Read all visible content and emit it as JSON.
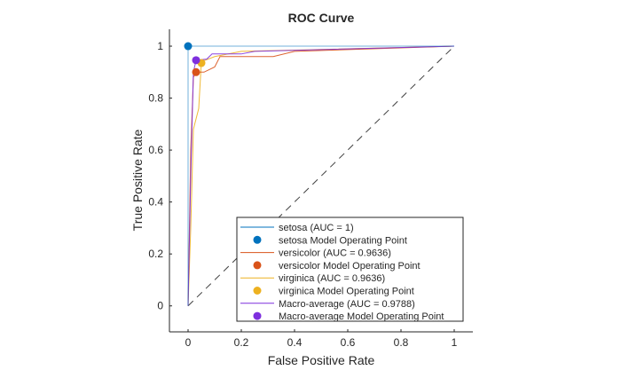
{
  "chart_data": {
    "type": "line",
    "title": "ROC Curve",
    "xlabel": "False Positive Rate",
    "ylabel": "True Positive Rate",
    "xlim": [
      -0.07,
      1.07
    ],
    "ylim": [
      -0.1,
      1.065
    ],
    "xticks": [
      "0",
      "0.2",
      "0.4",
      "0.6",
      "0.8",
      "1"
    ],
    "yticks": [
      "0",
      "0.2",
      "0.4",
      "0.6",
      "0.8",
      "1"
    ],
    "xtick_values": [
      0,
      0.2,
      0.4,
      0.6,
      0.8,
      1
    ],
    "ytick_values": [
      0,
      0.2,
      0.4,
      0.6,
      0.8,
      1
    ],
    "grid": false,
    "legend_placement": "bottom-right",
    "reference_line": {
      "x": [
        0,
        1
      ],
      "y": [
        0,
        1
      ],
      "style": "dashed",
      "color": "#404040"
    },
    "series": [
      {
        "name": "setosa (AUC = 1)",
        "color": "#0072BD",
        "x": [
          0,
          0,
          1
        ],
        "y": [
          0,
          1,
          1
        ],
        "op_name": "setosa Model Operating Point",
        "op": [
          0,
          1
        ]
      },
      {
        "name": "versicolor (AUC = 0.9636)",
        "color": "#D95319",
        "x": [
          0,
          0.01,
          0.02,
          0.03,
          0.06,
          0.1,
          0.12,
          0.32,
          0.4,
          1
        ],
        "y": [
          0,
          0.6,
          0.88,
          0.9,
          0.9,
          0.92,
          0.96,
          0.96,
          0.98,
          1
        ],
        "op_name": "versicolor Model Operating Point",
        "op": [
          0.03,
          0.9
        ]
      },
      {
        "name": "virginica (AUC = 0.9636)",
        "color": "#EDB120",
        "x": [
          0,
          0.01,
          0.02,
          0.04,
          0.05,
          0.1,
          0.2,
          1
        ],
        "y": [
          0,
          0.3,
          0.68,
          0.76,
          0.94,
          0.96,
          0.98,
          1
        ],
        "op_name": "virginica Model Operating Point",
        "op": [
          0.05,
          0.935
        ]
      },
      {
        "name": "Macro-average (AUC = 0.9788)",
        "color": "#7E2FDE",
        "x": [
          0,
          0.01,
          0.02,
          0.03,
          0.07,
          0.09,
          0.2,
          0.25,
          1
        ],
        "y": [
          0,
          0.5,
          0.9,
          0.946,
          0.95,
          0.97,
          0.97,
          0.98,
          1
        ],
        "op_name": "Macro-average Model Operating Point",
        "op": [
          0.03,
          0.946
        ]
      }
    ]
  }
}
